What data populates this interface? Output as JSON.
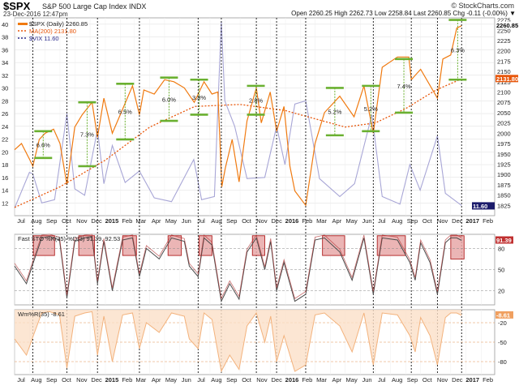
{
  "header": {
    "symbol": "$SPX",
    "name": "S&P 500 Large Cap Index",
    "exchange": "INDX",
    "datetime": "23-Dec-2016 12:47pm",
    "brand": "© StockCharts.com",
    "quote": "Open 2260.25   High 2262.73   Low 2258.84   Last 2260.85   Chg -0.11 (-0.00%) ▼"
  },
  "colors": {
    "spx": "#f07a10",
    "ma": "#e8560a",
    "vix": "#a8a6d6",
    "sto_line": "#4a4a4a",
    "sto_box_fill": "#e8a8a8",
    "sto_box_stroke": "#b02020",
    "wr": "#f3b27c",
    "target": "#6ab030",
    "grid": "#dcdcdc"
  },
  "chart_data": [
    {
      "type": "line",
      "title": "$SPX S&P 500 Large Cap Index",
      "legend_placement": "top-left",
      "legend": {
        "spx": "$SPX (Daily) 2260.85",
        "ma": "MA(200) 2131.80",
        "vix": "$VIX 11.60"
      },
      "x_axis_labels": [
        "Jul",
        "Aug",
        "Sep",
        "Oct",
        "Nov",
        "Dec",
        "2015",
        "Feb",
        "Mar",
        "Apr",
        "May",
        "Jun",
        "Jul",
        "Aug",
        "Sep",
        "Oct",
        "Nov",
        "Dec",
        "2016",
        "Feb",
        "Mar",
        "Apr",
        "May",
        "Jun",
        "Jul",
        "Aug",
        "Sep",
        "Oct",
        "Nov",
        "Dec",
        "2017",
        "Feb"
      ],
      "left_axis": {
        "label": "VIX",
        "range": [
          10,
          41
        ],
        "ticks": [
          "12",
          "14",
          "16",
          "18",
          "20",
          "22",
          "24",
          "26",
          "28",
          "30",
          "32",
          "34",
          "36",
          "38",
          "40"
        ]
      },
      "right_axis": {
        "label": "SPX",
        "range": [
          1800,
          2280
        ],
        "ticks": [
          "1825",
          "1850",
          "1875",
          "1900",
          "1925",
          "1950",
          "1975",
          "2000",
          "2025",
          "2050",
          "2075",
          "2100",
          "2125",
          "2150",
          "2175",
          "2200",
          "2225",
          "2250",
          "2275"
        ]
      },
      "last_labels": {
        "spx": "2260.85",
        "ma": "2131.80",
        "vix": "11.60"
      },
      "dates_spx": [
        "2014-07-01",
        "2014-07-15",
        "2014-08-01",
        "2014-08-07",
        "2014-08-20",
        "2014-09-01",
        "2014-09-18",
        "2014-10-01",
        "2014-10-15",
        "2014-10-31",
        "2014-11-15",
        "2014-12-05",
        "2014-12-16",
        "2014-12-29",
        "2015-01-15",
        "2015-02-02",
        "2015-02-25",
        "2015-03-11",
        "2015-03-20",
        "2015-04-10",
        "2015-05-01",
        "2015-05-20",
        "2015-06-10",
        "2015-06-30",
        "2015-07-20",
        "2015-08-05",
        "2015-08-17",
        "2015-08-25",
        "2015-09-01",
        "2015-09-15",
        "2015-09-29",
        "2015-10-15",
        "2015-11-03",
        "2015-11-13",
        "2015-12-01",
        "2015-12-14",
        "2015-12-29",
        "2016-01-10",
        "2016-01-20",
        "2016-02-11",
        "2016-03-01",
        "2016-03-20",
        "2016-04-20",
        "2016-05-19",
        "2016-06-08",
        "2016-06-27",
        "2016-07-15",
        "2016-08-15",
        "2016-09-07",
        "2016-09-12",
        "2016-10-01",
        "2016-11-04",
        "2016-11-15",
        "2016-12-01",
        "2016-12-13",
        "2016-12-23"
      ],
      "spx": [
        1960,
        1975,
        1935,
        1920,
        1985,
        2000,
        2010,
        1975,
        1875,
        2015,
        2045,
        2075,
        1990,
        2085,
        2000,
        2050,
        2115,
        2045,
        2105,
        2095,
        2130,
        2125,
        2110,
        2075,
        2125,
        2095,
        2100,
        1870,
        1915,
        1985,
        1882,
        2030,
        2110,
        2025,
        2100,
        2005,
        2065,
        1920,
        1860,
        1825,
        1975,
        2050,
        2090,
        2040,
        2115,
        2000,
        2160,
        2185,
        2185,
        2130,
        2155,
        2085,
        2180,
        2190,
        2255,
        2260.85
      ],
      "dates_ma": [
        "2014-07-01",
        "2014-10-01",
        "2015-01-01",
        "2015-04-01",
        "2015-07-01",
        "2015-10-01",
        "2016-01-01",
        "2016-03-01",
        "2016-05-01",
        "2016-07-01",
        "2016-09-01",
        "2016-11-01",
        "2016-12-23"
      ],
      "ma": [
        1820,
        1870,
        1935,
        2015,
        2065,
        2070,
        2055,
        2035,
        2015,
        2025,
        2060,
        2105,
        2131.8
      ],
      "dates_vix": [
        "2014-07-01",
        "2014-07-31",
        "2014-08-07",
        "2014-08-25",
        "2014-09-20",
        "2014-10-15",
        "2014-10-31",
        "2014-11-20",
        "2014-12-16",
        "2014-12-29",
        "2015-01-15",
        "2015-02-10",
        "2015-03-11",
        "2015-04-10",
        "2015-05-15",
        "2015-06-29",
        "2015-07-15",
        "2015-08-10",
        "2015-08-24",
        "2015-08-31",
        "2015-09-20",
        "2015-10-15",
        "2015-11-20",
        "2015-12-14",
        "2015-12-31",
        "2016-01-20",
        "2016-02-11",
        "2016-03-10",
        "2016-04-20",
        "2016-05-20",
        "2016-06-24",
        "2016-07-15",
        "2016-08-20",
        "2016-09-09",
        "2016-09-30",
        "2016-11-04",
        "2016-11-20",
        "2016-12-23"
      ],
      "vix": [
        11.2,
        16.8,
        16.5,
        12,
        12.5,
        26,
        14.2,
        13.2,
        23.5,
        15,
        21,
        15.2,
        17,
        12.8,
        12.2,
        18.8,
        12.5,
        13,
        40.5,
        28,
        24,
        15.8,
        16,
        24,
        18,
        27.5,
        28,
        15.8,
        13,
        15,
        25.8,
        13,
        11.8,
        18,
        14,
        22.5,
        13.5,
        11.6
      ]
    },
    {
      "type": "line",
      "title": "Fast STO %K(35) %D(3) 91.39, 92.53",
      "y_axis": {
        "range": [
          0,
          100
        ],
        "ticks": [
          "20",
          "50",
          "80"
        ]
      },
      "last_label": "91.39",
      "dates": [
        "2014-07-01",
        "2014-07-25",
        "2014-08-08",
        "2014-08-25",
        "2014-09-10",
        "2014-09-30",
        "2014-10-15",
        "2014-10-31",
        "2014-11-20",
        "2014-12-05",
        "2014-12-16",
        "2014-12-29",
        "2015-01-15",
        "2015-02-05",
        "2015-02-25",
        "2015-03-11",
        "2015-03-25",
        "2015-04-20",
        "2015-05-15",
        "2015-06-10",
        "2015-06-20",
        "2015-07-08",
        "2015-07-20",
        "2015-08-05",
        "2015-08-24",
        "2015-09-10",
        "2015-09-29",
        "2015-10-15",
        "2015-11-03",
        "2015-11-20",
        "2015-12-02",
        "2015-12-14",
        "2015-12-29",
        "2016-01-20",
        "2016-02-11",
        "2016-03-01",
        "2016-03-20",
        "2016-04-20",
        "2016-05-15",
        "2016-06-08",
        "2016-06-27",
        "2016-07-15",
        "2016-08-15",
        "2016-09-09",
        "2016-09-20",
        "2016-10-01",
        "2016-10-20",
        "2016-11-04",
        "2016-11-20",
        "2016-12-01",
        "2016-12-13",
        "2016-12-23"
      ],
      "values": [
        55,
        30,
        60,
        95,
        97,
        92,
        10,
        90,
        95,
        97,
        30,
        90,
        20,
        92,
        95,
        40,
        80,
        65,
        95,
        90,
        55,
        40,
        95,
        85,
        5,
        30,
        8,
        75,
        95,
        50,
        90,
        20,
        60,
        5,
        15,
        92,
        95,
        75,
        35,
        95,
        15,
        95,
        92,
        60,
        35,
        88,
        60,
        15,
        88,
        95,
        95,
        91.39
      ],
      "overbought_zones": [
        {
          "start": "2014-08-08",
          "end": "2014-09-20",
          "level": [
            70,
            98
          ]
        },
        {
          "start": "2014-11-08",
          "end": "2014-12-10",
          "level": [
            70,
            98
          ]
        },
        {
          "start": "2015-02-05",
          "end": "2015-03-05",
          "level": [
            70,
            98
          ]
        },
        {
          "start": "2015-05-08",
          "end": "2015-06-04",
          "level": [
            70,
            98
          ]
        },
        {
          "start": "2015-07-10",
          "end": "2015-08-05",
          "level": [
            70,
            98
          ]
        },
        {
          "start": "2015-10-26",
          "end": "2015-11-20",
          "level": [
            70,
            98
          ]
        },
        {
          "start": "2016-03-16",
          "end": "2016-04-30",
          "level": [
            70,
            98
          ]
        },
        {
          "start": "2016-07-05",
          "end": "2016-08-31",
          "level": [
            70,
            98
          ]
        },
        {
          "start": "2016-12-01",
          "end": "2016-12-28",
          "level": [
            65,
            98
          ]
        }
      ]
    },
    {
      "type": "area",
      "title": "Wm%R(35) -8.61",
      "y_axis": {
        "range": [
          -100,
          0
        ],
        "ticks": [
          "-20",
          "-50",
          "-80"
        ]
      },
      "last_label": "-8.61",
      "dates": [
        "2014-07-01",
        "2014-07-25",
        "2014-08-08",
        "2014-08-25",
        "2014-09-10",
        "2014-09-30",
        "2014-10-15",
        "2014-10-31",
        "2014-11-20",
        "2014-12-05",
        "2014-12-16",
        "2014-12-29",
        "2015-01-15",
        "2015-02-05",
        "2015-02-25",
        "2015-03-11",
        "2015-03-25",
        "2015-04-20",
        "2015-05-15",
        "2015-06-10",
        "2015-06-20",
        "2015-07-08",
        "2015-07-20",
        "2015-08-05",
        "2015-08-24",
        "2015-09-10",
        "2015-09-29",
        "2015-10-15",
        "2015-11-03",
        "2015-11-20",
        "2015-12-02",
        "2015-12-14",
        "2015-12-29",
        "2016-01-20",
        "2016-02-11",
        "2016-03-01",
        "2016-03-20",
        "2016-04-20",
        "2016-05-15",
        "2016-06-08",
        "2016-06-27",
        "2016-07-15",
        "2016-08-15",
        "2016-09-09",
        "2016-09-20",
        "2016-10-01",
        "2016-10-20",
        "2016-11-04",
        "2016-11-20",
        "2016-12-01",
        "2016-12-13",
        "2016-12-23"
      ],
      "values": [
        -45,
        -70,
        -40,
        -5,
        -3,
        -8,
        -90,
        -10,
        -5,
        -3,
        -70,
        -10,
        -80,
        -8,
        -5,
        -60,
        -20,
        -35,
        -5,
        -10,
        -45,
        -60,
        -5,
        -15,
        -95,
        -70,
        -92,
        -25,
        -5,
        -50,
        -10,
        -80,
        -40,
        -95,
        -85,
        -8,
        -5,
        -25,
        -65,
        -5,
        -85,
        -5,
        -8,
        -40,
        -65,
        -12,
        -40,
        -85,
        -12,
        -5,
        -5,
        -8.61
      ]
    }
  ],
  "annotations": {
    "cycle_lines": [
      "2014-08-07",
      "2014-10-15",
      "2014-12-16",
      "2015-03-11",
      "2015-07-08",
      "2015-08-24",
      "2015-11-03",
      "2015-12-14",
      "2016-02-11",
      "2016-06-27",
      "2016-09-12",
      "2016-11-04",
      "2016-12-23"
    ],
    "moves": [
      {
        "label": "6.6%",
        "date": "2014-08-28",
        "low": 1940,
        "high": 2005
      },
      {
        "label": "7.3%",
        "date": "2014-11-25",
        "low": 1920,
        "high": 2075
      },
      {
        "label": "6.5%",
        "date": "2015-02-10",
        "low": 1985,
        "high": 2120
      },
      {
        "label": "6.0%",
        "date": "2015-05-10",
        "low": 2030,
        "high": 2135
      },
      {
        "label": "3.8%",
        "date": "2015-07-10",
        "low": 2045,
        "high": 2130
      },
      {
        "label": "2.8%",
        "date": "2015-11-02",
        "low": 2045,
        "high": 2115
      },
      {
        "label": "5.2%",
        "date": "2016-04-10",
        "low": 1995,
        "high": 2110
      },
      {
        "label": "5.2%",
        "date": "2016-06-22",
        "low": 2005,
        "high": 2115
      },
      {
        "label": "7.4%",
        "date": "2016-08-28",
        "low": 2050,
        "high": 2180
      },
      {
        "label": "6.3%",
        "date": "2016-12-15",
        "low": 2130,
        "high": 2275
      }
    ]
  }
}
